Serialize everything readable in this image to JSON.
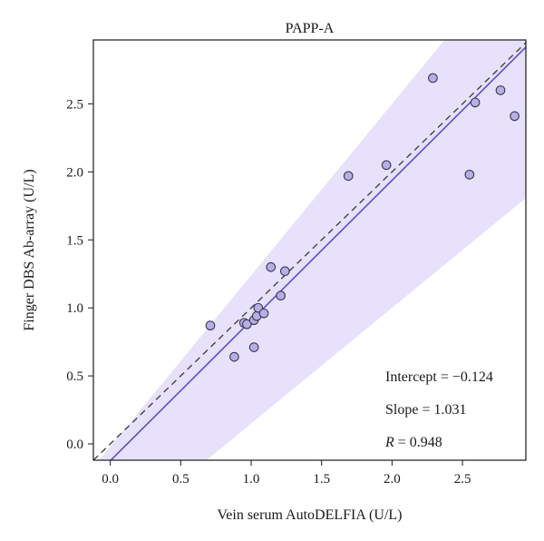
{
  "chart_data": {
    "type": "scatter",
    "title": "PAPP-A",
    "xlabel": "Vein serum AutoDELFIA (U/L)",
    "ylabel": "Finger DBS Ab-array (U/L)",
    "xlim": [
      -0.12,
      2.95
    ],
    "ylim": [
      -0.12,
      2.97
    ],
    "xticks": [
      0.0,
      0.5,
      1.0,
      1.5,
      2.0,
      2.5
    ],
    "yticks": [
      0.0,
      0.5,
      1.0,
      1.5,
      2.0,
      2.5
    ],
    "xtick_labels": [
      "0.0",
      "0.5",
      "1.0",
      "1.5",
      "2.0",
      "2.5"
    ],
    "ytick_labels": [
      "0.0",
      "0.5",
      "1.0",
      "1.5",
      "2.0",
      "2.5"
    ],
    "grid": false,
    "points": [
      {
        "x": 0.71,
        "y": 0.87
      },
      {
        "x": 0.88,
        "y": 0.64
      },
      {
        "x": 0.95,
        "y": 0.89
      },
      {
        "x": 0.97,
        "y": 0.88
      },
      {
        "x": 1.02,
        "y": 0.71
      },
      {
        "x": 1.02,
        "y": 0.91
      },
      {
        "x": 1.04,
        "y": 0.94
      },
      {
        "x": 1.05,
        "y": 1.0
      },
      {
        "x": 1.09,
        "y": 0.96
      },
      {
        "x": 1.14,
        "y": 1.3
      },
      {
        "x": 1.21,
        "y": 1.09
      },
      {
        "x": 1.24,
        "y": 1.27
      },
      {
        "x": 1.69,
        "y": 1.97
      },
      {
        "x": 1.96,
        "y": 2.05
      },
      {
        "x": 2.29,
        "y": 2.69
      },
      {
        "x": 2.55,
        "y": 1.98
      },
      {
        "x": 2.59,
        "y": 2.51
      },
      {
        "x": 2.77,
        "y": 2.6
      },
      {
        "x": 2.87,
        "y": 2.41
      }
    ],
    "regression": {
      "intercept": -0.124,
      "slope": 1.031
    },
    "confidence_band": {
      "upper": {
        "intercept": -0.02,
        "slope": 1.26
      },
      "lower": {
        "intercept": -0.7,
        "slope": 0.85
      }
    },
    "identity_line": true,
    "annotations": {
      "intercept_text": "Intercept = −0.124",
      "slope_text": "Slope = 1.031",
      "r_label": "R",
      "r_value_text": " = 0.948"
    },
    "colors": {
      "band": "#e8e1fb",
      "regression": "#5a4fcf",
      "identity": "#444444",
      "point_fill": "#b8aee6",
      "point_stroke": "#3a3a55"
    }
  }
}
